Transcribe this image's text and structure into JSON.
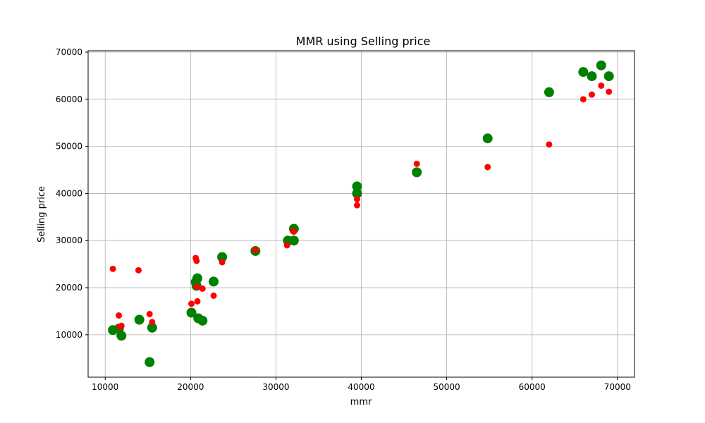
{
  "chart_data": {
    "type": "scatter",
    "title": "MMR using Selling price",
    "xlabel": "mmr",
    "ylabel": "Selling price",
    "xlim": [
      8000,
      72000
    ],
    "ylim": [
      1000,
      70300
    ],
    "xticks": [
      10000,
      20000,
      30000,
      40000,
      50000,
      60000,
      70000
    ],
    "yticks": [
      10000,
      20000,
      30000,
      40000,
      50000,
      60000,
      70000
    ],
    "xtick_labels": [
      "10000",
      "20000",
      "30000",
      "40000",
      "50000",
      "60000",
      "70000"
    ],
    "ytick_labels": [
      "10000",
      "20000",
      "30000",
      "40000",
      "50000",
      "60000",
      "70000"
    ],
    "grid": true,
    "series": [
      {
        "color": "#008000",
        "marker_size": "large",
        "points": [
          [
            10900,
            11000
          ],
          [
            11600,
            11300
          ],
          [
            11900,
            9800
          ],
          [
            14000,
            13200
          ],
          [
            15200,
            4200
          ],
          [
            15500,
            11500
          ],
          [
            20100,
            14700
          ],
          [
            20600,
            21200
          ],
          [
            20700,
            20400
          ],
          [
            20800,
            22000
          ],
          [
            20900,
            13500
          ],
          [
            21400,
            13000
          ],
          [
            22700,
            21300
          ],
          [
            23700,
            26500
          ],
          [
            27600,
            27800
          ],
          [
            31400,
            30000
          ],
          [
            32100,
            30000
          ],
          [
            32100,
            32500
          ],
          [
            39500,
            41500
          ],
          [
            39500,
            40000
          ],
          [
            46500,
            44500
          ],
          [
            54800,
            51700
          ],
          [
            62000,
            61500
          ],
          [
            66000,
            65800
          ],
          [
            67000,
            64900
          ],
          [
            68100,
            67200
          ],
          [
            69000,
            64900
          ]
        ]
      },
      {
        "color": "#ff0000",
        "marker_size": "small",
        "points": [
          [
            10900,
            24000
          ],
          [
            11600,
            14100
          ],
          [
            11900,
            11900
          ],
          [
            11700,
            11700
          ],
          [
            13900,
            23700
          ],
          [
            15200,
            14400
          ],
          [
            15500,
            12700
          ],
          [
            20100,
            16600
          ],
          [
            20600,
            26300
          ],
          [
            20700,
            25700
          ],
          [
            20700,
            20200
          ],
          [
            20800,
            17100
          ],
          [
            21400,
            19800
          ],
          [
            22700,
            18300
          ],
          [
            23700,
            25400
          ],
          [
            27600,
            28000
          ],
          [
            31300,
            29000
          ],
          [
            32000,
            32000
          ],
          [
            32100,
            31900
          ],
          [
            39500,
            37500
          ],
          [
            39500,
            38800
          ],
          [
            46500,
            46300
          ],
          [
            54800,
            45600
          ],
          [
            62000,
            50400
          ],
          [
            66000,
            60000
          ],
          [
            67000,
            61000
          ],
          [
            68100,
            62900
          ],
          [
            69000,
            61600
          ]
        ]
      }
    ]
  }
}
